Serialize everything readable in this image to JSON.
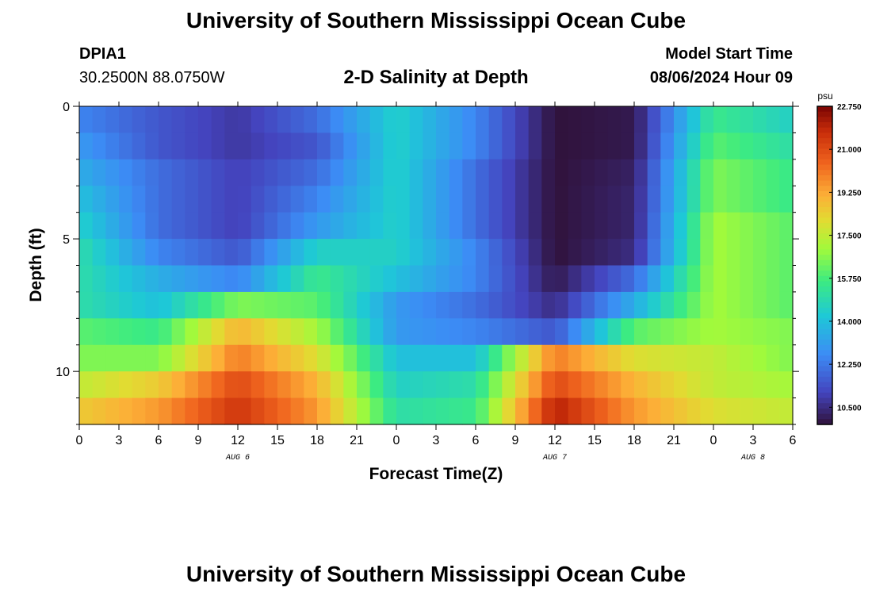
{
  "header": {
    "title": "University of Southern Mississippi Ocean Cube",
    "station_id": "DPIA1",
    "station_coords": "30.2500N  88.0750W",
    "chart_title": "2-D Salinity at Depth",
    "model_label": "Model Start Time",
    "model_time": "08/06/2024 Hour 09"
  },
  "footer": {
    "title": "University of Southern Mississippi Ocean Cube"
  },
  "chart_data": {
    "type": "heatmap",
    "title": "2-D Salinity at Depth",
    "xlabel": "Forecast Time(Z)",
    "ylabel": "Depth (ft)",
    "x_tick_labels": [
      "0",
      "3",
      "6",
      "9",
      "12",
      "15",
      "18",
      "21",
      "0",
      "3",
      "6",
      "9",
      "12",
      "15",
      "18",
      "21",
      "0",
      "3",
      "6"
    ],
    "date_labels": [
      "AUG 6",
      "AUG 7",
      "AUG 8"
    ],
    "y_tick_labels": [
      "0",
      "5",
      "10"
    ],
    "ylim": [
      0,
      12
    ],
    "xlim_hours": [
      0,
      54
    ],
    "colorbar": {
      "unit": "psu",
      "min": 9.8,
      "max": 22.75,
      "tick_labels": [
        "22.750",
        "21.000",
        "19.250",
        "17.500",
        "15.750",
        "14.000",
        "12.250",
        "10.500"
      ],
      "tick_values": [
        22.75,
        21.0,
        19.25,
        17.5,
        15.75,
        14.0,
        12.25,
        10.5
      ]
    },
    "grid": false,
    "depths_ft": [
      0.5,
      1.5,
      2.5,
      3.5,
      4.5,
      5.5,
      6.5,
      7.5,
      8.5,
      9.5,
      10.5,
      11.5
    ],
    "time_hours": [
      0,
      6,
      12,
      18,
      24,
      30,
      36,
      42,
      48,
      54
    ],
    "salinity_psu": [
      [
        12.5,
        11.5,
        10.8,
        12.0,
        14.5,
        12.5,
        9.8,
        10.0,
        15.5,
        14.5
      ],
      [
        13.0,
        11.5,
        10.8,
        11.5,
        14.5,
        12.5,
        9.8,
        10.0,
        16.0,
        15.0
      ],
      [
        13.5,
        12.0,
        11.0,
        12.0,
        14.5,
        12.0,
        9.8,
        10.2,
        16.5,
        15.5
      ],
      [
        14.0,
        12.0,
        11.0,
        12.5,
        14.5,
        12.0,
        9.8,
        10.3,
        16.5,
        15.5
      ],
      [
        14.5,
        12.0,
        11.0,
        13.0,
        14.5,
        12.0,
        9.8,
        10.3,
        17.0,
        16.0
      ],
      [
        15.0,
        12.5,
        11.5,
        14.5,
        14.5,
        12.5,
        9.8,
        10.5,
        17.0,
        16.0
      ],
      [
        15.0,
        13.5,
        12.5,
        15.5,
        14.0,
        12.5,
        10.0,
        12.0,
        17.0,
        16.0
      ],
      [
        15.0,
        14.0,
        16.5,
        16.0,
        13.0,
        12.0,
        10.5,
        13.5,
        17.0,
        16.0
      ],
      [
        16.0,
        15.5,
        19.0,
        17.0,
        13.0,
        12.5,
        11.5,
        16.0,
        17.0,
        16.5
      ],
      [
        16.5,
        16.5,
        20.0,
        18.0,
        14.0,
        14.0,
        20.0,
        18.0,
        17.5,
        16.5
      ],
      [
        17.5,
        18.5,
        21.0,
        19.0,
        14.5,
        15.0,
        21.0,
        19.0,
        17.5,
        17.0
      ],
      [
        18.5,
        19.5,
        21.5,
        19.5,
        15.0,
        15.5,
        22.0,
        19.5,
        18.0,
        17.5
      ]
    ]
  }
}
